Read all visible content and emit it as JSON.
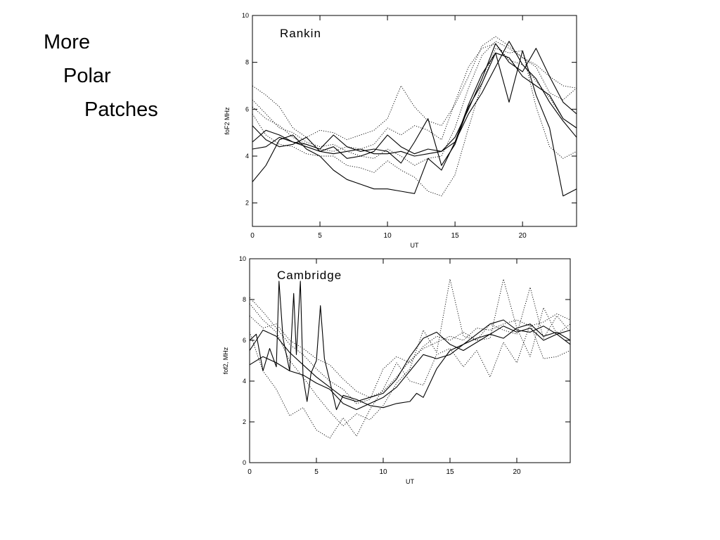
{
  "slide": {
    "title_line1": "More",
    "title_line2": "Polar",
    "title_line3": "Patches"
  },
  "chart_data": [
    {
      "type": "line",
      "title": "Rankin",
      "xlabel": "UT",
      "ylabel": "foF2 MHz",
      "xlim": [
        0,
        24
      ],
      "ylim": [
        1,
        10
      ],
      "xticks": [
        "0",
        "5",
        "10",
        "15",
        "20"
      ],
      "yticks": [
        "2",
        "4",
        "6",
        "8",
        "10"
      ],
      "grid": false,
      "legend": "none",
      "series": [
        {
          "style": "solid",
          "x": [
            0,
            1,
            2,
            3,
            4,
            5,
            6,
            7,
            8,
            9,
            10,
            11,
            12,
            13,
            14,
            15,
            16,
            17,
            18,
            19,
            20,
            21,
            22,
            23,
            24
          ],
          "y": [
            2.9,
            3.6,
            4.7,
            4.9,
            4.3,
            4.0,
            3.4,
            3.0,
            2.8,
            2.6,
            2.6,
            2.5,
            2.4,
            3.9,
            3.4,
            4.6,
            6.2,
            7.5,
            8.4,
            8.2,
            7.4,
            7.0,
            6.6,
            5.6,
            5.2
          ]
        },
        {
          "style": "solid",
          "x": [
            0,
            1,
            2,
            3,
            4,
            5,
            6,
            7,
            8,
            9,
            10,
            11,
            12,
            13,
            14,
            15,
            16,
            17,
            18,
            19,
            20,
            21,
            22,
            23,
            24
          ],
          "y": [
            4.3,
            4.4,
            4.8,
            4.6,
            4.4,
            4.2,
            4.1,
            4.2,
            4.3,
            4.1,
            4.1,
            4.2,
            4.0,
            4.1,
            4.2,
            4.8,
            6.0,
            7.3,
            8.8,
            8.0,
            7.6,
            8.6,
            7.4,
            6.3,
            5.8
          ]
        },
        {
          "style": "solid",
          "x": [
            0,
            1,
            2,
            3,
            4,
            5,
            6,
            7,
            8,
            9,
            10,
            11,
            12,
            13,
            14,
            15,
            16,
            17,
            18,
            19,
            20,
            21,
            22,
            23,
            24
          ],
          "y": [
            4.6,
            5.1,
            4.9,
            4.6,
            4.5,
            4.3,
            4.9,
            4.4,
            4.2,
            4.3,
            4.2,
            3.7,
            4.6,
            5.6,
            3.6,
            4.5,
            6.1,
            7.1,
            8.4,
            6.3,
            8.5,
            6.6,
            5.2,
            2.3,
            2.6
          ]
        },
        {
          "style": "solid",
          "x": [
            0,
            1,
            2,
            3,
            4,
            5,
            6,
            7,
            8,
            9,
            10,
            11,
            12,
            13,
            14,
            15,
            16,
            17,
            18,
            19,
            20,
            21,
            22,
            23,
            24
          ],
          "y": [
            5.3,
            4.7,
            4.4,
            4.5,
            4.8,
            4.2,
            4.4,
            3.9,
            4.0,
            4.2,
            4.9,
            4.4,
            4.1,
            4.3,
            4.2,
            4.6,
            5.8,
            6.7,
            7.8,
            8.9,
            7.9,
            7.3,
            6.3,
            5.5,
            4.8
          ]
        },
        {
          "style": "dotted",
          "x": [
            0,
            1,
            2,
            3,
            4,
            5,
            6,
            7,
            8,
            9,
            10,
            11,
            12,
            13,
            14,
            15,
            16,
            17,
            18,
            19,
            20,
            21,
            22,
            23,
            24
          ],
          "y": [
            7.0,
            6.6,
            6.1,
            5.2,
            4.8,
            5.1,
            5.0,
            4.7,
            4.9,
            5.1,
            5.6,
            7.0,
            6.1,
            5.5,
            5.3,
            6.2,
            7.4,
            8.7,
            9.1,
            8.7,
            8.2,
            7.8,
            6.7,
            6.4,
            6.9
          ]
        },
        {
          "style": "dotted",
          "x": [
            0,
            1,
            2,
            3,
            4,
            5,
            6,
            7,
            8,
            9,
            10,
            11,
            12,
            13,
            14,
            15,
            16,
            17,
            18,
            19,
            20,
            21,
            22,
            23,
            24
          ],
          "y": [
            6.1,
            5.6,
            5.3,
            4.8,
            4.5,
            4.3,
            4.2,
            4.4,
            4.3,
            4.5,
            5.2,
            4.9,
            5.3,
            5.1,
            4.7,
            6.3,
            7.8,
            8.6,
            8.8,
            8.1,
            7.9,
            7.2,
            6.5,
            5.6,
            5.2
          ]
        },
        {
          "style": "dotted",
          "x": [
            0,
            1,
            2,
            3,
            4,
            5,
            6,
            7,
            8,
            9,
            10,
            11,
            12,
            13,
            14,
            15,
            16,
            17,
            18,
            19,
            20,
            21,
            22,
            23,
            24
          ],
          "y": [
            5.8,
            4.9,
            4.5,
            4.4,
            4.1,
            4.0,
            4.0,
            3.6,
            3.5,
            3.3,
            3.8,
            3.4,
            3.1,
            2.5,
            2.3,
            3.2,
            5.2,
            7.1,
            8.6,
            8.4,
            8.5,
            6.1,
            4.4,
            3.9,
            4.2
          ]
        },
        {
          "style": "dotted",
          "x": [
            0,
            1,
            2,
            3,
            4,
            5,
            6,
            7,
            8,
            9,
            10,
            11,
            12,
            13,
            14,
            15,
            16,
            17,
            18,
            19,
            20,
            21,
            22,
            23,
            24
          ],
          "y": [
            6.4,
            5.8,
            5.2,
            5.0,
            4.6,
            4.4,
            4.5,
            4.2,
            4.0,
            3.9,
            4.3,
            4.0,
            3.6,
            3.9,
            4.0,
            5.2,
            6.9,
            8.3,
            8.9,
            8.6,
            8.2,
            7.9,
            7.4,
            7.0,
            6.9
          ]
        }
      ]
    },
    {
      "type": "line",
      "title": "Cambridge",
      "xlabel": "UT",
      "ylabel": "fof2, MHz",
      "xlim": [
        0,
        24
      ],
      "ylim": [
        0,
        10
      ],
      "xticks": [
        "0",
        "5",
        "10",
        "15",
        "20"
      ],
      "yticks": [
        "0",
        "2",
        "4",
        "6",
        "8",
        "10"
      ],
      "grid": false,
      "legend": "none",
      "series": [
        {
          "style": "solid",
          "x": [
            0,
            0.5,
            1,
            1.5,
            2,
            2.2,
            2.5,
            3,
            3.3,
            3.5,
            3.8,
            4,
            4.3,
            4.6,
            5,
            5.3,
            5.6,
            6,
            6.5,
            7,
            8,
            9,
            10,
            11,
            12,
            12.5,
            13,
            14,
            15,
            16,
            17,
            18,
            19,
            20,
            21,
            22,
            23,
            24
          ],
          "y": [
            6.0,
            6.3,
            4.5,
            5.6,
            4.7,
            8.9,
            6.1,
            4.5,
            8.3,
            5.3,
            8.9,
            4.2,
            3.0,
            4.4,
            5.0,
            7.7,
            5.1,
            4.0,
            2.6,
            3.3,
            3.1,
            2.8,
            2.7,
            2.9,
            3.0,
            3.4,
            3.2,
            4.6,
            5.5,
            5.8,
            6.3,
            6.8,
            7.0,
            6.5,
            6.4,
            6.7,
            6.3,
            6.5
          ]
        },
        {
          "style": "solid",
          "x": [
            0,
            1,
            2,
            3,
            4,
            5,
            6,
            7,
            8,
            9,
            10,
            11,
            12,
            13,
            14,
            15,
            16,
            17,
            18,
            19,
            20,
            21,
            22,
            23,
            24
          ],
          "y": [
            5.5,
            6.5,
            6.2,
            5.4,
            4.8,
            4.2,
            3.7,
            3.2,
            3.0,
            3.2,
            3.4,
            4.1,
            5.2,
            6.1,
            6.4,
            5.8,
            5.5,
            5.9,
            6.3,
            6.1,
            6.6,
            6.8,
            6.2,
            6.4,
            6.0
          ]
        },
        {
          "style": "solid",
          "x": [
            0,
            1,
            2,
            3,
            4,
            5,
            6,
            7,
            8,
            9,
            10,
            11,
            12,
            13,
            14,
            15,
            16,
            17,
            18,
            19,
            20,
            21,
            22,
            23,
            24
          ],
          "y": [
            4.8,
            5.2,
            4.9,
            4.5,
            4.3,
            3.9,
            3.6,
            2.9,
            2.6,
            2.9,
            3.2,
            3.7,
            4.5,
            5.3,
            5.1,
            5.3,
            5.8,
            6.1,
            6.3,
            6.7,
            6.4,
            6.6,
            6.0,
            6.3,
            5.8
          ]
        },
        {
          "style": "dotted",
          "x": [
            0,
            1,
            2,
            3,
            4,
            5,
            6,
            7,
            8,
            9,
            10,
            11,
            12,
            13,
            14,
            15,
            16,
            17,
            18,
            19,
            20,
            21,
            22,
            23,
            24
          ],
          "y": [
            7.8,
            7.0,
            6.4,
            5.0,
            4.2,
            3.3,
            2.5,
            1.8,
            2.4,
            2.1,
            2.8,
            3.9,
            4.6,
            6.5,
            5.4,
            9.0,
            6.2,
            6.0,
            6.1,
            9.0,
            6.6,
            5.2,
            7.6,
            6.3,
            6.8
          ]
        },
        {
          "style": "dotted",
          "x": [
            0,
            1,
            2,
            3,
            4,
            5,
            6,
            7,
            8,
            9,
            10,
            11,
            12,
            13,
            14,
            15,
            16,
            17,
            18,
            19,
            20,
            21,
            22,
            23,
            24
          ],
          "y": [
            8.1,
            7.4,
            6.6,
            5.8,
            5.3,
            4.6,
            4.0,
            3.6,
            2.9,
            3.1,
            4.6,
            5.2,
            4.9,
            5.7,
            6.2,
            6.0,
            6.4,
            6.0,
            6.8,
            6.5,
            6.3,
            8.6,
            6.1,
            7.2,
            6.4
          ]
        },
        {
          "style": "dotted",
          "x": [
            0,
            1,
            2,
            3,
            4,
            5,
            6,
            7,
            8,
            9,
            10,
            11,
            12,
            13,
            14,
            15,
            16,
            17,
            18,
            19,
            20,
            21,
            22,
            23,
            24
          ],
          "y": [
            6.4,
            4.5,
            3.6,
            2.3,
            2.7,
            1.6,
            1.2,
            2.2,
            1.3,
            2.6,
            3.6,
            4.9,
            4.0,
            3.8,
            5.3,
            5.6,
            4.7,
            5.5,
            4.2,
            5.9,
            4.9,
            6.8,
            5.1,
            5.2,
            5.5
          ]
        },
        {
          "style": "dotted",
          "x": [
            0,
            1,
            2,
            3,
            4,
            5,
            6,
            7,
            8,
            9,
            10,
            11,
            12,
            13,
            14,
            15,
            16,
            17,
            18,
            19,
            20,
            21,
            22,
            23,
            24
          ],
          "y": [
            7.2,
            6.6,
            6.8,
            6.0,
            5.6,
            5.1,
            4.8,
            4.1,
            3.5,
            3.2,
            3.5,
            4.2,
            5.0,
            5.6,
            5.9,
            6.2,
            6.0,
            6.6,
            6.5,
            6.8,
            7.0,
            6.7,
            6.9,
            7.3,
            7.0
          ]
        }
      ]
    }
  ]
}
